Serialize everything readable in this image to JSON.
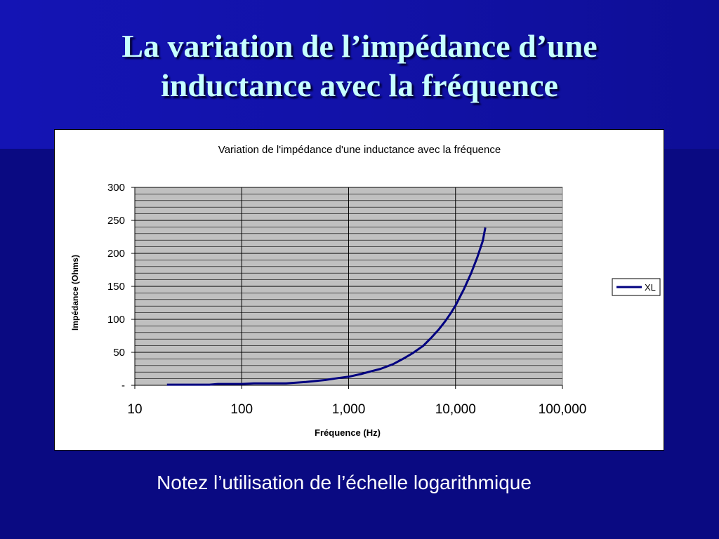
{
  "slide": {
    "title_line1": "La variation de l’impédance d’une",
    "title_line2": "inductance avec la fréquence",
    "note": "Notez l’utilisation de l’échelle logarithmique"
  },
  "colors": {
    "background": "#0a0a82",
    "title": "#c6ffff",
    "plot_area": "#c0c0c0",
    "series": "#000080"
  },
  "chart_data": {
    "type": "line",
    "title": "Variation de l'impédance d'une inductance avec la fréquence",
    "xlabel": "Fréquence (Hz)",
    "ylabel": "Impédance (Ohms)",
    "x_scale": "log",
    "xlim": [
      10,
      100000
    ],
    "ylim": [
      0,
      300
    ],
    "x_ticks": [
      10,
      100,
      1000,
      10000,
      100000
    ],
    "x_tick_labels": [
      "10",
      "100",
      "1,000",
      "10,000",
      "100,000"
    ],
    "y_ticks": [
      0,
      50,
      100,
      150,
      200,
      250,
      300
    ],
    "y_tick_labels": [
      "-",
      "50",
      "100",
      "150",
      "200",
      "250",
      "300"
    ],
    "grid": "on",
    "legend": "right",
    "series": [
      {
        "name": "XL",
        "x": [
          20,
          50,
          60,
          100,
          130,
          200,
          260,
          400,
          600,
          800,
          1000,
          1300,
          1600,
          2000,
          2600,
          3300,
          4000,
          5000,
          6000,
          7000,
          8000,
          9000,
          10000,
          12000,
          14000,
          16000,
          18000,
          19000
        ],
        "y": [
          1,
          1,
          2,
          2,
          3,
          3,
          3,
          5,
          8,
          11,
          13,
          17,
          21,
          25,
          32,
          41,
          49,
          60,
          73,
          85,
          97,
          109,
          121,
          146,
          170,
          194,
          219,
          239
        ]
      }
    ]
  }
}
